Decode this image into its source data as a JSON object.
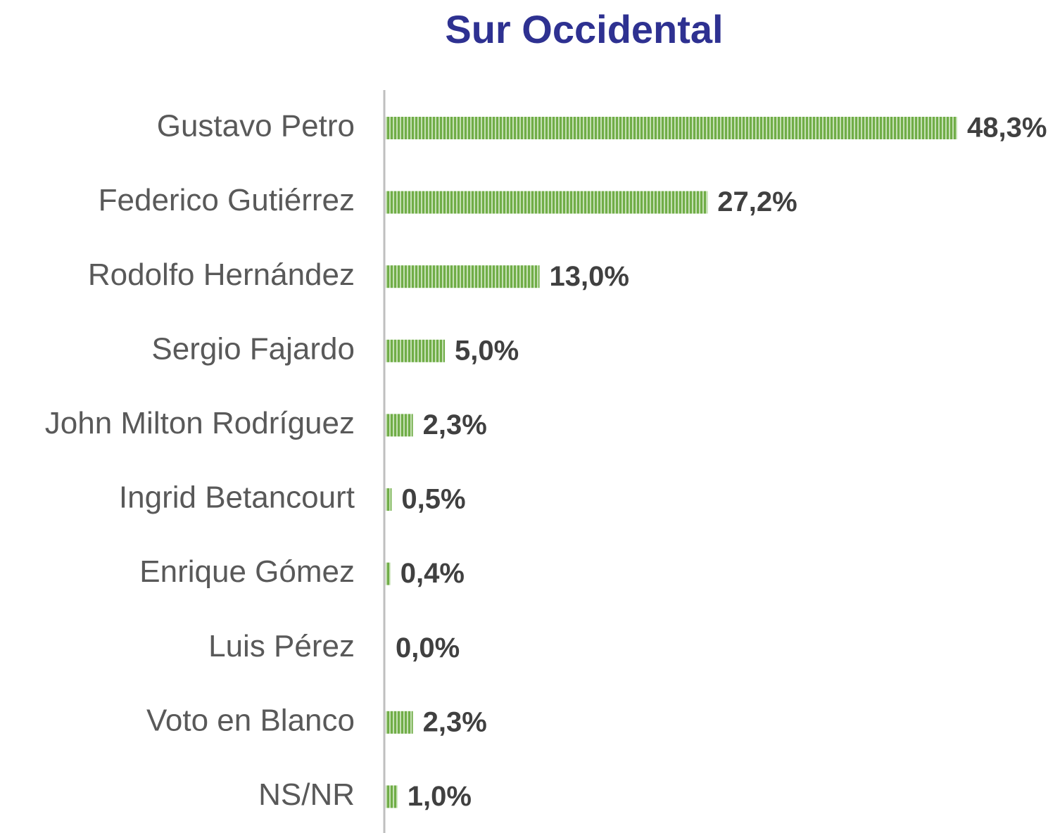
{
  "chart_data": {
    "type": "bar",
    "orientation": "horizontal",
    "title": "Sur Occidental",
    "categories": [
      "Gustavo Petro",
      "Federico Gutiérrez",
      "Rodolfo Hernández",
      "Sergio Fajardo",
      "John Milton Rodríguez",
      "Ingrid Betancourt",
      "Enrique Gómez",
      "Luis Pérez",
      "Voto en Blanco",
      "NS/NR"
    ],
    "values": [
      48.3,
      27.2,
      13.0,
      5.0,
      2.3,
      0.5,
      0.4,
      0.0,
      2.3,
      1.0
    ],
    "value_labels": [
      "48,3%",
      "27,2%",
      "13,0%",
      "5,0%",
      "2,3%",
      "0,5%",
      "0,4%",
      "0,0%",
      "2,3%",
      "1,0%"
    ],
    "color": "#70ad47"
  }
}
